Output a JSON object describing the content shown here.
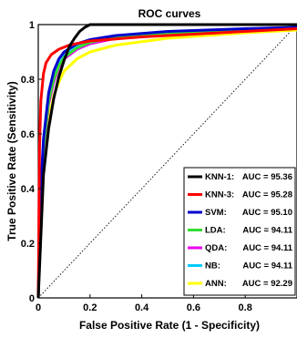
{
  "chart_data": {
    "type": "line",
    "title": "ROC curves",
    "xlabel": "False Positive Rate (1 - Specificity)",
    "ylabel": "True Positive Rate (Sensitivity)",
    "xlim": [
      0,
      1
    ],
    "ylim": [
      0,
      1
    ],
    "xticks": [
      "0",
      "0.2",
      "0.4",
      "0.6",
      "0.8"
    ],
    "yticks": [
      "0",
      "0.2",
      "0.4",
      "0.6",
      "0.8",
      "1"
    ],
    "grid": false,
    "legend_position": "bottom-right",
    "reference_line": "dotted diagonal",
    "series": [
      {
        "name": "KNN-1:",
        "auc_label": "AUC = 95.36",
        "color": "#000000",
        "x": [
          0,
          0.02,
          0.04,
          0.06,
          0.08,
          0.1,
          0.12,
          0.14,
          0.16,
          0.18,
          0.2,
          0.3,
          0.5,
          1.0
        ],
        "y": [
          0,
          0.45,
          0.62,
          0.73,
          0.81,
          0.87,
          0.92,
          0.95,
          0.975,
          0.99,
          1.0,
          1.0,
          1.0,
          1.0
        ]
      },
      {
        "name": "KNN-3:",
        "auc_label": "AUC = 95.28",
        "color": "#ff0000",
        "x": [
          0,
          0.005,
          0.01,
          0.02,
          0.03,
          0.05,
          0.08,
          0.12,
          0.2,
          0.4,
          0.7,
          1.0
        ],
        "y": [
          0,
          0.55,
          0.72,
          0.82,
          0.86,
          0.89,
          0.91,
          0.925,
          0.94,
          0.955,
          0.97,
          0.985
        ]
      },
      {
        "name": "SVM:",
        "auc_label": "AUC = 95.10",
        "color": "#0000cc",
        "x": [
          0,
          0.01,
          0.02,
          0.04,
          0.06,
          0.08,
          0.1,
          0.15,
          0.2,
          0.3,
          0.5,
          0.8,
          1.0
        ],
        "y": [
          0,
          0.4,
          0.58,
          0.75,
          0.83,
          0.875,
          0.9,
          0.93,
          0.945,
          0.96,
          0.975,
          0.985,
          0.99
        ]
      },
      {
        "name": "LDA:",
        "auc_label": "AUC = 94.11",
        "color": "#33dd33",
        "x": [
          0,
          0.01,
          0.02,
          0.04,
          0.06,
          0.08,
          0.1,
          0.15,
          0.2,
          0.3,
          0.5,
          0.8,
          1.0
        ],
        "y": [
          0,
          0.38,
          0.55,
          0.72,
          0.8,
          0.85,
          0.88,
          0.915,
          0.935,
          0.955,
          0.97,
          0.98,
          0.99
        ]
      },
      {
        "name": "QDA:",
        "auc_label": "AUC = 94.11",
        "color": "#ee00ee",
        "x": [
          0,
          0.01,
          0.02,
          0.04,
          0.06,
          0.08,
          0.1,
          0.15,
          0.2,
          0.3,
          0.5,
          0.8,
          1.0
        ],
        "y": [
          0,
          0.36,
          0.54,
          0.71,
          0.79,
          0.845,
          0.875,
          0.91,
          0.93,
          0.95,
          0.968,
          0.98,
          0.99
        ]
      },
      {
        "name": "NB:",
        "auc_label": "AUC = 94.11",
        "color": "#00ccff",
        "x": [
          0,
          0.01,
          0.02,
          0.04,
          0.06,
          0.08,
          0.1,
          0.15,
          0.2,
          0.3,
          0.5,
          0.8,
          1.0
        ],
        "y": [
          0,
          0.37,
          0.56,
          0.725,
          0.805,
          0.855,
          0.885,
          0.92,
          0.94,
          0.958,
          0.972,
          0.982,
          0.99
        ]
      },
      {
        "name": "ANN:",
        "auc_label": "AUC = 92.29",
        "color": "#ffff00",
        "x": [
          0,
          0.01,
          0.02,
          0.04,
          0.06,
          0.08,
          0.1,
          0.15,
          0.2,
          0.3,
          0.5,
          0.8,
          1.0
        ],
        "y": [
          0,
          0.3,
          0.48,
          0.65,
          0.74,
          0.79,
          0.83,
          0.875,
          0.9,
          0.925,
          0.95,
          0.97,
          0.98
        ]
      }
    ]
  }
}
